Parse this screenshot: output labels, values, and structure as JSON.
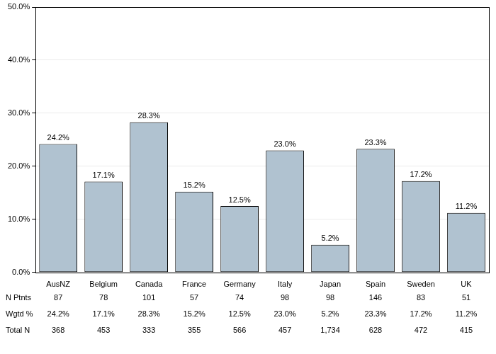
{
  "chart_data": {
    "type": "bar",
    "categories": [
      "AusNZ",
      "Belgium",
      "Canada",
      "France",
      "Germany",
      "Italy",
      "Japan",
      "Spain",
      "Sweden",
      "UK"
    ],
    "values": [
      24.2,
      17.1,
      28.3,
      15.2,
      12.5,
      23.0,
      5.2,
      23.3,
      17.2,
      11.2
    ],
    "value_labels": [
      "24.2%",
      "17.1%",
      "28.3%",
      "15.2%",
      "12.5%",
      "23.0%",
      "5.2%",
      "23.3%",
      "17.2%",
      "11.2%"
    ],
    "data_labels": true,
    "color": "#b0c2d0",
    "ylim": [
      0,
      50
    ],
    "yticks": [
      {
        "value": 0,
        "label": "0.0%"
      },
      {
        "value": 10,
        "label": "10.0%"
      },
      {
        "value": 20,
        "label": "20.0%"
      },
      {
        "value": 30,
        "label": "30.0%"
      },
      {
        "value": 40,
        "label": "40.0%"
      },
      {
        "value": 50,
        "label": "50.0%"
      }
    ],
    "grid": true,
    "table": {
      "rows": [
        {
          "label": "N Ptnts",
          "cells": [
            "87",
            "78",
            "101",
            "57",
            "74",
            "98",
            "98",
            "146",
            "83",
            "51"
          ]
        },
        {
          "label": "Wgtd %",
          "cells": [
            "24.2%",
            "17.1%",
            "28.3%",
            "15.2%",
            "12.5%",
            "23.0%",
            "5.2%",
            "23.3%",
            "17.2%",
            "11.2%"
          ]
        },
        {
          "label": "Total N",
          "cells": [
            "368",
            "453",
            "333",
            "355",
            "566",
            "457",
            "1,734",
            "628",
            "472",
            "415"
          ]
        }
      ]
    }
  }
}
